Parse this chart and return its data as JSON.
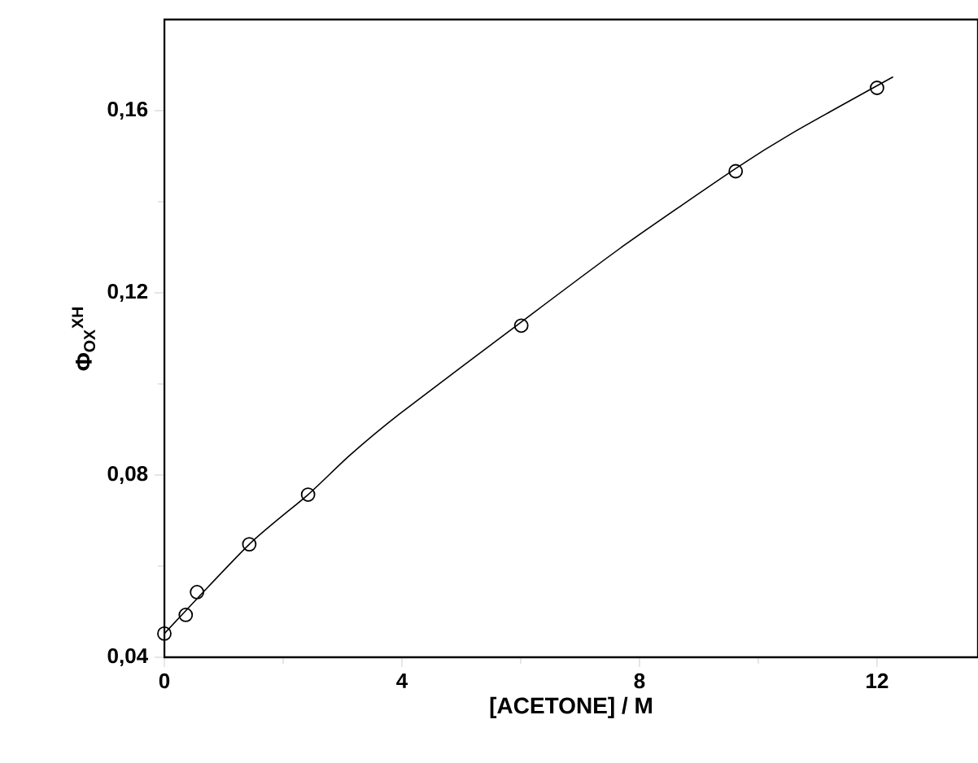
{
  "chart_data": {
    "type": "scatter",
    "xlabel": "[ACETONE] / M",
    "ylabel": "Φ$_{OX}$$^{XH}$",
    "xlim": [
      0,
      13.7
    ],
    "ylim": [
      0.04,
      0.18
    ],
    "xticks": [
      0,
      4,
      8,
      12
    ],
    "yticks": [
      {
        "value": 0.04,
        "label": "0,04"
      },
      {
        "value": 0.08,
        "label": "0,08"
      },
      {
        "value": 0.12,
        "label": "0,12"
      },
      {
        "value": 0.16,
        "label": "0,16"
      }
    ],
    "grid": false,
    "series": [
      {
        "color": "#000000",
        "marker": "circle",
        "x": [
          0,
          0.36,
          0.55,
          1.43,
          2.42,
          6.01,
          9.62,
          12.0
        ],
        "values": [
          0.0452,
          0.0493,
          0.0543,
          0.0648,
          0.0757,
          0.1128,
          0.1467,
          0.165
        ]
      },
      {
        "type": "line",
        "color": "#000000",
        "marker": "none",
        "line_style": "solid",
        "x": [
          0,
          1.43,
          2.42,
          3.12,
          3.96,
          6.01,
          7.75,
          9.62,
          10.59,
          12.27
        ],
        "values": [
          0.0452,
          0.0648,
          0.0757,
          0.0843,
          0.0934,
          0.1136,
          0.1305,
          0.1473,
          0.1552,
          0.1674
        ]
      }
    ]
  }
}
